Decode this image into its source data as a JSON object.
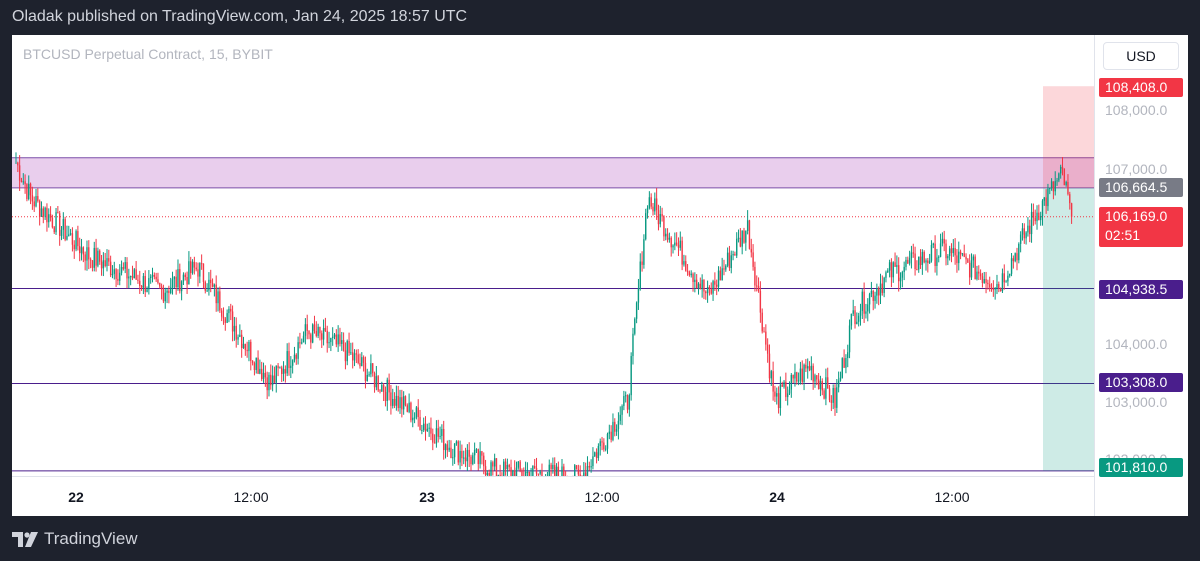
{
  "header": {
    "published": "Oladak published on TradingView.com, Jan 24, 2025 18:57 UTC"
  },
  "footer": {
    "brand": "TradingView"
  },
  "chart_data": {
    "type": "candlestick",
    "title": "BTCUSD Perpetual Contract, 15, BYBIT",
    "currency": "USD",
    "y_ticks": [
      {
        "value": 108000,
        "label": "108,000.0"
      },
      {
        "value": 107000,
        "label": "107,000.0"
      },
      {
        "value": 104000,
        "label": "104,000.0"
      },
      {
        "value": 103000,
        "label": "103,000.0"
      },
      {
        "value": 102000,
        "label": "102,000.0"
      }
    ],
    "x_ticks": [
      {
        "label": "22",
        "day": true
      },
      {
        "label": "12:00",
        "day": false
      },
      {
        "label": "23",
        "day": true
      },
      {
        "label": "12:00",
        "day": false
      },
      {
        "label": "24",
        "day": true
      },
      {
        "label": "12:00",
        "day": false
      }
    ],
    "price_labels": [
      {
        "value": 108408.0,
        "label": "108,408.0",
        "color": "#f23645"
      },
      {
        "value": 106664.5,
        "label": "106,664.5",
        "color": "#787b86"
      },
      {
        "value": 106169.0,
        "label": "106,169.0",
        "sub": "02:51",
        "color": "#f23645"
      },
      {
        "value": 104938.5,
        "label": "104,938.5",
        "color": "#4a1e8c"
      },
      {
        "value": 103308.0,
        "label": "103,308.0",
        "color": "#4a1e8c"
      },
      {
        "value": 101810.0,
        "label": "101,810.0",
        "color": "#089981"
      }
    ],
    "zone": {
      "low": 106664.5,
      "high": 107180.0,
      "color": "#e1bee7"
    },
    "horizontal_lines": [
      104938.5,
      103308.0,
      101810.0
    ],
    "position": {
      "entry": 106664.5,
      "stop": 108408.0,
      "target": 101810.0
    },
    "last_price": 106169.0,
    "ohlc_key_points": [
      {
        "t": 0,
        "p": 107100
      },
      {
        "t": 8,
        "p": 106500
      },
      {
        "t": 40,
        "p": 105500
      },
      {
        "t": 80,
        "p": 104900
      },
      {
        "t": 100,
        "p": 105300
      },
      {
        "t": 140,
        "p": 103300
      },
      {
        "t": 160,
        "p": 104200
      },
      {
        "t": 180,
        "p": 103900
      },
      {
        "t": 210,
        "p": 103000
      },
      {
        "t": 240,
        "p": 102200
      },
      {
        "t": 265,
        "p": 101800
      },
      {
        "t": 310,
        "p": 101700
      },
      {
        "t": 336,
        "p": 103000
      },
      {
        "t": 347,
        "p": 106500
      },
      {
        "t": 380,
        "p": 104800
      },
      {
        "t": 402,
        "p": 106000
      },
      {
        "t": 417,
        "p": 103000
      },
      {
        "t": 436,
        "p": 103600
      },
      {
        "t": 450,
        "p": 103000
      },
      {
        "t": 460,
        "p": 104500
      },
      {
        "t": 480,
        "p": 105200
      },
      {
        "t": 510,
        "p": 105600
      },
      {
        "t": 540,
        "p": 105000
      },
      {
        "t": 560,
        "p": 106200
      },
      {
        "t": 575,
        "p": 106900
      },
      {
        "t": 580,
        "p": 106169
      }
    ]
  }
}
